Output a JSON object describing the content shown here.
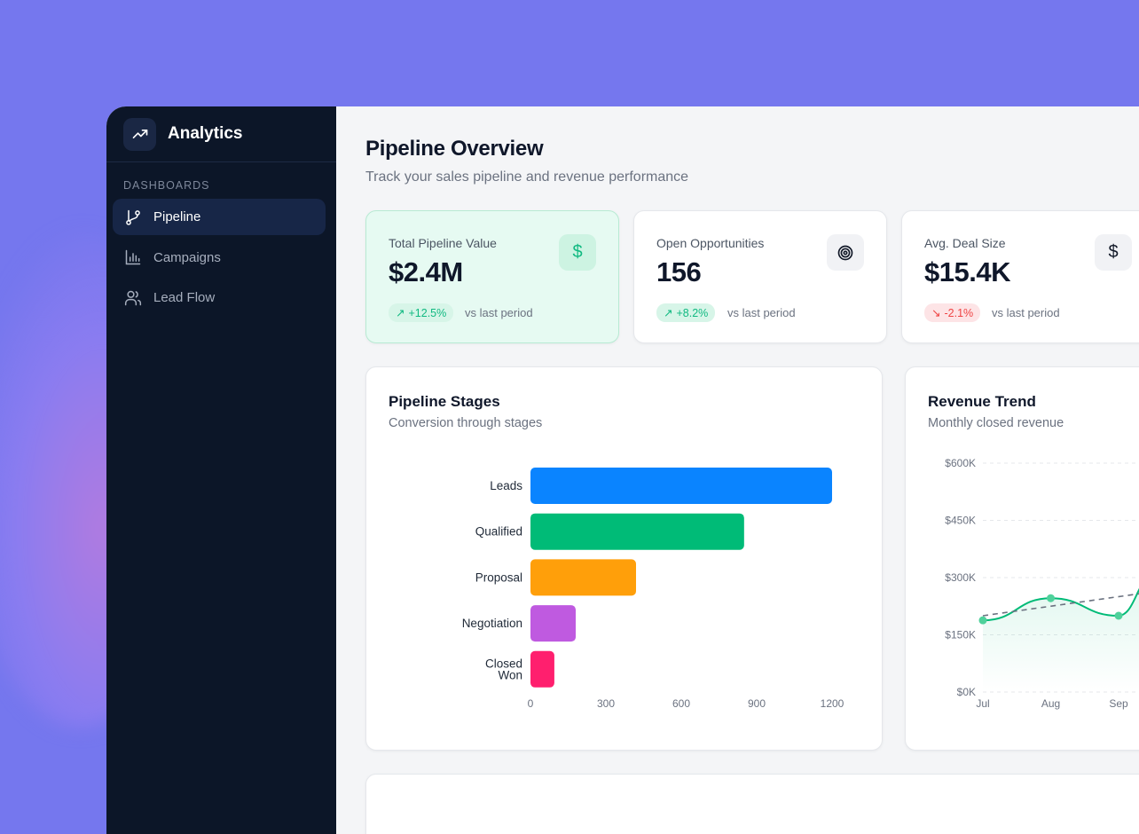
{
  "app": {
    "name": "Analytics",
    "logo_icon": "trending-up-icon"
  },
  "sidebar": {
    "section": "DASHBOARDS",
    "items": [
      {
        "label": "Pipeline",
        "icon": "git-branch-icon",
        "active": true
      },
      {
        "label": "Campaigns",
        "icon": "bar-chart-icon",
        "active": false
      },
      {
        "label": "Lead Flow",
        "icon": "users-icon",
        "active": false
      }
    ]
  },
  "header": {
    "title": "Pipeline Overview",
    "subtitle": "Track your sales pipeline and revenue performance"
  },
  "stats": [
    {
      "label": "Total Pipeline Value",
      "value": "$2.4M",
      "icon": "dollar-icon",
      "change": "+12.5%",
      "direction": "up",
      "compare": "vs last period"
    },
    {
      "label": "Open Opportunities",
      "value": "156",
      "icon": "target-icon",
      "change": "+8.2%",
      "direction": "up",
      "compare": "vs last period"
    },
    {
      "label": "Avg. Deal Size",
      "value": "$15.4K",
      "icon": "dollar-icon",
      "change": "-2.1%",
      "direction": "down",
      "compare": "vs last period"
    }
  ],
  "colors": {
    "accent": "#10b981",
    "negative": "#ef4444",
    "sidebar": "#0c1628",
    "background": "#7577ee"
  },
  "chart_data": [
    {
      "type": "bar",
      "orientation": "horizontal",
      "title": "Pipeline Stages",
      "subtitle": "Conversion through stages",
      "categories": [
        "Leads",
        "Qualified",
        "Proposal",
        "Negotiation",
        "Closed Won"
      ],
      "values": [
        1200,
        850,
        420,
        180,
        95
      ],
      "colors": [
        "#0a84ff",
        "#00bb77",
        "#ff9f0a",
        "#bf5ae0",
        "#ff1f6e"
      ],
      "xlim": [
        0,
        1200
      ],
      "xticks": [
        "0",
        "300",
        "600",
        "900",
        "1200"
      ],
      "grid": false
    },
    {
      "type": "line",
      "title": "Revenue Trend",
      "subtitle": "Monthly closed revenue",
      "categories": [
        "Jul",
        "Aug",
        "Sep"
      ],
      "values": [
        188000,
        246000,
        200000
      ],
      "trend": [
        200000,
        225000,
        250000
      ],
      "ylim": [
        0,
        600000
      ],
      "yticks": [
        "$0K",
        "$150K",
        "$300K",
        "$450K",
        "$600K"
      ],
      "grid": true,
      "color": "#00bb77"
    }
  ]
}
